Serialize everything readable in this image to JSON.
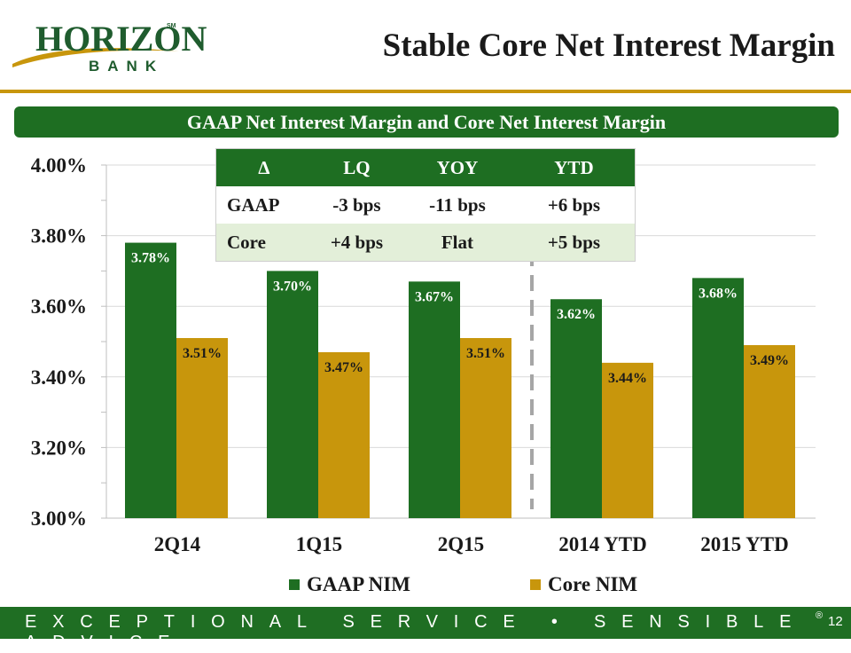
{
  "logo": {
    "word": "HORIZON",
    "tm": "SM",
    "sub": "BANK"
  },
  "title": "Stable Core Net Interest Margin",
  "subtitle": "GAAP Net Interest Margin and Core Net Interest Margin",
  "colors": {
    "green": "#1e6e22",
    "gold": "#c8960c",
    "core_row": "#e3efd9"
  },
  "chart_data": {
    "type": "bar",
    "title": "GAAP Net Interest Margin and Core Net Interest Margin",
    "categories": [
      "2Q14",
      "1Q15",
      "2Q15",
      "2014 YTD",
      "2015 YTD"
    ],
    "series": [
      {
        "name": "GAAP NIM",
        "color": "#1e6e22",
        "values": [
          3.78,
          3.7,
          3.67,
          3.62,
          3.68
        ],
        "labels": [
          "3.78%",
          "3.70%",
          "3.67%",
          "3.62%",
          "3.68%"
        ]
      },
      {
        "name": "Core NIM",
        "color": "#c8960c",
        "values": [
          3.51,
          3.47,
          3.51,
          3.44,
          3.49
        ],
        "labels": [
          "3.51%",
          "3.47%",
          "3.51%",
          "3.44%",
          "3.49%"
        ]
      }
    ],
    "ylim": [
      3.0,
      4.0
    ],
    "yticks": [
      3.0,
      3.2,
      3.4,
      3.6,
      3.8,
      4.0
    ],
    "ytick_labels": [
      "3.00%",
      "3.20%",
      "3.40%",
      "3.60%",
      "3.80%",
      "4.00%"
    ],
    "grid": true,
    "legend": "bottom",
    "xlabel": "",
    "ylabel": "",
    "divider_after_category": "2Q15"
  },
  "change_table": {
    "headers": [
      "∆",
      "LQ",
      "YOY",
      "YTD"
    ],
    "rows": [
      {
        "label": "GAAP",
        "lq": "-3 bps",
        "yoy": "-11 bps",
        "ytd": "+6 bps"
      },
      {
        "label": "Core",
        "lq": "+4 bps",
        "yoy": "Flat",
        "ytd": "+5 bps"
      }
    ]
  },
  "footer": {
    "tagline": "EXCEPTIONAL SERVICE • SENSIBLE ADVICE",
    "reg": "®",
    "page": "12"
  }
}
